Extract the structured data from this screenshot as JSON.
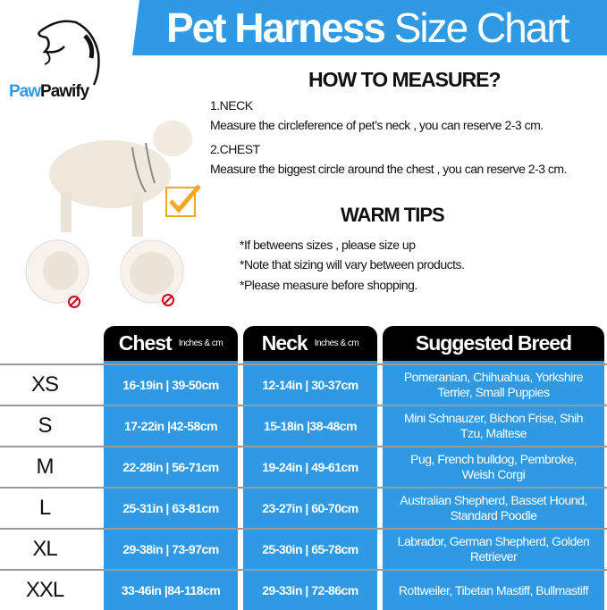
{
  "brand": {
    "part1": "Paw",
    "part2": "Pawify"
  },
  "title": {
    "bold": "Pet Harness",
    "light": "Size Chart"
  },
  "measure": {
    "heading": "HOW TO MEASURE?",
    "neck_label": "1.NECK",
    "neck_text": "Measure the circleference of pet’s neck , you can reserve 2-3 cm.",
    "chest_label": "2.CHEST",
    "chest_text": "Measure the biggest circle around the chest , you can reserve 2-3 cm."
  },
  "tips": {
    "heading": "WARM TIPS",
    "items": [
      "*If betweens sizes , please size up",
      "*Note that sizing will vary between products.",
      "*Please measure before shopping."
    ]
  },
  "colors": {
    "accent": "#2f9ae3",
    "header": "#000000",
    "check": "#f5a623",
    "prohibit": "#d0021b"
  },
  "table": {
    "headers": [
      {
        "label": "Chest",
        "unit": "Inches & cm"
      },
      {
        "label": "Neck",
        "unit": "Inches & cm"
      },
      {
        "label": "Suggested Breed",
        "unit": ""
      }
    ],
    "rows": [
      {
        "size": "XS",
        "chest": "16-19in | 39-50cm",
        "neck": "12-14in | 30-37cm",
        "breed": "Pomeranian, Chihuahua, Yorkshire Terrier, Small Puppies"
      },
      {
        "size": "S",
        "chest": "17-22in |42-58cm",
        "neck": "15-18in |38-48cm",
        "breed": "Mini Schnauzer, Bichon Frise, Shih Tzu, Maltese"
      },
      {
        "size": "M",
        "chest": "22-28in | 56-71cm",
        "neck": "19-24in | 49-61cm",
        "breed": "Pug, French bulldog, Pembroke, Weish Corgi"
      },
      {
        "size": "L",
        "chest": "25-31in | 63-81cm",
        "neck": "23-27in | 60-70cm",
        "breed": "Australian Shepherd, Basset Hound, Standard Poodle"
      },
      {
        "size": "XL",
        "chest": "29-38in | 73-97cm",
        "neck": "25-30in | 65-78cm",
        "breed": "Labrador, German Shepherd, Golden Retriever"
      },
      {
        "size": "XXL",
        "chest": "33-46in |84-118cm",
        "neck": "29-33in | 72-86cm",
        "breed": "Rottweiler, Tibetan Mastiff, Bullmastiff"
      }
    ]
  }
}
